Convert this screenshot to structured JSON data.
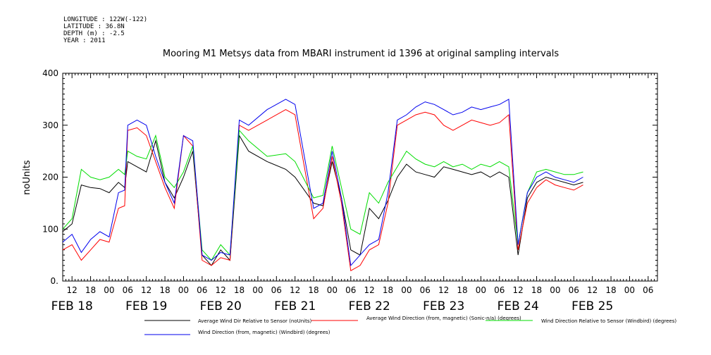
{
  "header": {
    "longitude": "LONGITUDE : 122W(-122)",
    "latitude": "LATITUDE : 36.8N",
    "depth": "DEPTH (m) : -2.5",
    "year": "YEAR : 2011"
  },
  "chart_data": {
    "type": "line",
    "title": "Mooring M1 Metsys data from MBARI instrument id 1396 at original sampling intervals",
    "ylabel": "noUnits",
    "ylim": [
      0,
      400
    ],
    "yticks": [
      "0.",
      "100",
      "200",
      "300",
      "400"
    ],
    "xlim": [
      "2011-02-17T09:00",
      "2011-02-25T09:00"
    ],
    "x_hour_ticks": [
      "12",
      "18",
      "00",
      "06",
      "12",
      "18",
      "00",
      "06",
      "12",
      "18",
      "00",
      "06",
      "12",
      "18",
      "00",
      "06",
      "12",
      "18",
      "00",
      "06",
      "12",
      "18",
      "00",
      "06",
      "12",
      "18",
      "00",
      "06",
      "12",
      "18",
      "00",
      "06"
    ],
    "x_day_labels": [
      "FEB 18",
      "FEB 19",
      "FEB 20",
      "FEB 21",
      "FEB 22",
      "FEB 23",
      "FEB 24",
      "FEB 25"
    ],
    "grid": false,
    "legend": "bottom",
    "series": [
      {
        "name": "Average Wind Dir Relative to Sensor (noUnits)",
        "color": "#000000",
        "points": [
          [
            "2011-02-17T09:00",
            95
          ],
          [
            "2011-02-17T12:00",
            110
          ],
          [
            "2011-02-17T15:00",
            185
          ],
          [
            "2011-02-17T18:00",
            180
          ],
          [
            "2011-02-17T21:00",
            178
          ],
          [
            "2011-02-18T00:00",
            170
          ],
          [
            "2011-02-18T03:00",
            190
          ],
          [
            "2011-02-18T05:00",
            180
          ],
          [
            "2011-02-18T06:00",
            230
          ],
          [
            "2011-02-18T09:00",
            220
          ],
          [
            "2011-02-18T12:00",
            210
          ],
          [
            "2011-02-18T15:00",
            270
          ],
          [
            "2011-02-18T18:00",
            190
          ],
          [
            "2011-02-18T21:00",
            160
          ],
          [
            "2011-02-19T00:00",
            200
          ],
          [
            "2011-02-19T03:00",
            250
          ],
          [
            "2011-02-19T06:00",
            50
          ],
          [
            "2011-02-19T09:00",
            30
          ],
          [
            "2011-02-19T12:00",
            60
          ],
          [
            "2011-02-19T15:00",
            40
          ],
          [
            "2011-02-19T18:00",
            280
          ],
          [
            "2011-02-19T21:00",
            250
          ],
          [
            "2011-02-20T03:00",
            230
          ],
          [
            "2011-02-20T09:00",
            215
          ],
          [
            "2011-02-20T12:00",
            200
          ],
          [
            "2011-02-20T18:00",
            150
          ],
          [
            "2011-02-20T21:00",
            145
          ],
          [
            "2011-02-21T00:00",
            230
          ],
          [
            "2011-02-21T03:00",
            160
          ],
          [
            "2011-02-21T06:00",
            60
          ],
          [
            "2011-02-21T09:00",
            50
          ],
          [
            "2011-02-21T12:00",
            140
          ],
          [
            "2011-02-21T15:00",
            120
          ],
          [
            "2011-02-21T18:00",
            155
          ],
          [
            "2011-02-21T21:00",
            200
          ],
          [
            "2011-02-22T00:00",
            225
          ],
          [
            "2011-02-22T03:00",
            210
          ],
          [
            "2011-02-22T06:00",
            205
          ],
          [
            "2011-02-22T09:00",
            200
          ],
          [
            "2011-02-22T12:00",
            220
          ],
          [
            "2011-02-22T15:00",
            215
          ],
          [
            "2011-02-22T18:00",
            210
          ],
          [
            "2011-02-22T21:00",
            205
          ],
          [
            "2011-02-23T00:00",
            210
          ],
          [
            "2011-02-23T03:00",
            200
          ],
          [
            "2011-02-23T06:00",
            210
          ],
          [
            "2011-02-23T09:00",
            200
          ],
          [
            "2011-02-23T12:00",
            50
          ],
          [
            "2011-02-23T15:00",
            160
          ],
          [
            "2011-02-23T18:00",
            190
          ],
          [
            "2011-02-23T21:00",
            200
          ],
          [
            "2011-02-24T00:00",
            195
          ],
          [
            "2011-02-24T03:00",
            190
          ],
          [
            "2011-02-24T06:00",
            185
          ],
          [
            "2011-02-24T09:00",
            190
          ]
        ]
      },
      {
        "name": "Average Wind Direction (from, magnetic) (Sonic-n/a) (degrees)",
        "color": "#ff0000",
        "points": [
          [
            "2011-02-17T09:00",
            60
          ],
          [
            "2011-02-17T12:00",
            70
          ],
          [
            "2011-02-17T15:00",
            40
          ],
          [
            "2011-02-17T18:00",
            60
          ],
          [
            "2011-02-17T21:00",
            80
          ],
          [
            "2011-02-18T00:00",
            75
          ],
          [
            "2011-02-18T03:00",
            140
          ],
          [
            "2011-02-18T05:00",
            145
          ],
          [
            "2011-02-18T06:00",
            290
          ],
          [
            "2011-02-18T09:00",
            295
          ],
          [
            "2011-02-18T12:00",
            280
          ],
          [
            "2011-02-18T15:00",
            230
          ],
          [
            "2011-02-18T18:00",
            180
          ],
          [
            "2011-02-18T21:00",
            140
          ],
          [
            "2011-02-19T00:00",
            280
          ],
          [
            "2011-02-19T03:00",
            260
          ],
          [
            "2011-02-19T06:00",
            40
          ],
          [
            "2011-02-19T09:00",
            30
          ],
          [
            "2011-02-19T12:00",
            45
          ],
          [
            "2011-02-19T15:00",
            40
          ],
          [
            "2011-02-19T18:00",
            300
          ],
          [
            "2011-02-19T21:00",
            290
          ],
          [
            "2011-02-20T03:00",
            310
          ],
          [
            "2011-02-20T09:00",
            330
          ],
          [
            "2011-02-20T12:00",
            320
          ],
          [
            "2011-02-20T18:00",
            120
          ],
          [
            "2011-02-20T21:00",
            140
          ],
          [
            "2011-02-21T00:00",
            240
          ],
          [
            "2011-02-21T03:00",
            150
          ],
          [
            "2011-02-21T06:00",
            20
          ],
          [
            "2011-02-21T09:00",
            30
          ],
          [
            "2011-02-21T12:00",
            60
          ],
          [
            "2011-02-21T15:00",
            70
          ],
          [
            "2011-02-21T18:00",
            150
          ],
          [
            "2011-02-21T21:00",
            300
          ],
          [
            "2011-02-22T00:00",
            310
          ],
          [
            "2011-02-22T03:00",
            320
          ],
          [
            "2011-02-22T06:00",
            325
          ],
          [
            "2011-02-22T09:00",
            320
          ],
          [
            "2011-02-22T12:00",
            300
          ],
          [
            "2011-02-22T15:00",
            290
          ],
          [
            "2011-02-22T18:00",
            300
          ],
          [
            "2011-02-22T21:00",
            310
          ],
          [
            "2011-02-23T00:00",
            305
          ],
          [
            "2011-02-23T03:00",
            300
          ],
          [
            "2011-02-23T06:00",
            305
          ],
          [
            "2011-02-23T09:00",
            320
          ],
          [
            "2011-02-23T12:00",
            60
          ],
          [
            "2011-02-23T15:00",
            150
          ],
          [
            "2011-02-23T18:00",
            180
          ],
          [
            "2011-02-23T21:00",
            195
          ],
          [
            "2011-02-24T00:00",
            185
          ],
          [
            "2011-02-24T03:00",
            180
          ],
          [
            "2011-02-24T06:00",
            175
          ],
          [
            "2011-02-24T09:00",
            185
          ]
        ]
      },
      {
        "name": "Wind Direction Relative to Sensor (Windbird) (degrees)",
        "color": "#00dd00",
        "points": [
          [
            "2011-02-17T09:00",
            100
          ],
          [
            "2011-02-17T12:00",
            120
          ],
          [
            "2011-02-17T15:00",
            215
          ],
          [
            "2011-02-17T18:00",
            200
          ],
          [
            "2011-02-17T21:00",
            195
          ],
          [
            "2011-02-18T00:00",
            200
          ],
          [
            "2011-02-18T03:00",
            215
          ],
          [
            "2011-02-18T05:00",
            205
          ],
          [
            "2011-02-18T06:00",
            250
          ],
          [
            "2011-02-18T09:00",
            240
          ],
          [
            "2011-02-18T12:00",
            235
          ],
          [
            "2011-02-18T15:00",
            280
          ],
          [
            "2011-02-18T18:00",
            200
          ],
          [
            "2011-02-18T21:00",
            180
          ],
          [
            "2011-02-19T00:00",
            210
          ],
          [
            "2011-02-19T03:00",
            260
          ],
          [
            "2011-02-19T06:00",
            60
          ],
          [
            "2011-02-19T09:00",
            40
          ],
          [
            "2011-02-19T12:00",
            70
          ],
          [
            "2011-02-19T15:00",
            50
          ],
          [
            "2011-02-19T18:00",
            290
          ],
          [
            "2011-02-19T21:00",
            270
          ],
          [
            "2011-02-20T03:00",
            240
          ],
          [
            "2011-02-20T09:00",
            245
          ],
          [
            "2011-02-20T12:00",
            230
          ],
          [
            "2011-02-20T18:00",
            160
          ],
          [
            "2011-02-20T21:00",
            165
          ],
          [
            "2011-02-21T00:00",
            260
          ],
          [
            "2011-02-21T03:00",
            180
          ],
          [
            "2011-02-21T06:00",
            100
          ],
          [
            "2011-02-21T09:00",
            90
          ],
          [
            "2011-02-21T12:00",
            170
          ],
          [
            "2011-02-21T15:00",
            150
          ],
          [
            "2011-02-21T18:00",
            190
          ],
          [
            "2011-02-21T21:00",
            220
          ],
          [
            "2011-02-22T00:00",
            250
          ],
          [
            "2011-02-22T03:00",
            235
          ],
          [
            "2011-02-22T06:00",
            225
          ],
          [
            "2011-02-22T09:00",
            220
          ],
          [
            "2011-02-22T12:00",
            230
          ],
          [
            "2011-02-22T15:00",
            220
          ],
          [
            "2011-02-22T18:00",
            225
          ],
          [
            "2011-02-22T21:00",
            215
          ],
          [
            "2011-02-23T00:00",
            225
          ],
          [
            "2011-02-23T03:00",
            220
          ],
          [
            "2011-02-23T06:00",
            230
          ],
          [
            "2011-02-23T09:00",
            220
          ],
          [
            "2011-02-23T12:00",
            70
          ],
          [
            "2011-02-23T15:00",
            170
          ],
          [
            "2011-02-23T18:00",
            210
          ],
          [
            "2011-02-23T21:00",
            215
          ],
          [
            "2011-02-24T00:00",
            210
          ],
          [
            "2011-02-24T03:00",
            205
          ],
          [
            "2011-02-24T06:00",
            205
          ],
          [
            "2011-02-24T09:00",
            210
          ]
        ]
      },
      {
        "name": "Wind Direction (from, magnetic) (Windbird) (degrees)",
        "color": "#0000ee",
        "points": [
          [
            "2011-02-17T09:00",
            75
          ],
          [
            "2011-02-17T12:00",
            90
          ],
          [
            "2011-02-17T15:00",
            55
          ],
          [
            "2011-02-17T18:00",
            80
          ],
          [
            "2011-02-17T21:00",
            95
          ],
          [
            "2011-02-18T00:00",
            85
          ],
          [
            "2011-02-18T03:00",
            170
          ],
          [
            "2011-02-18T05:00",
            175
          ],
          [
            "2011-02-18T06:00",
            300
          ],
          [
            "2011-02-18T09:00",
            310
          ],
          [
            "2011-02-18T12:00",
            300
          ],
          [
            "2011-02-18T15:00",
            240
          ],
          [
            "2011-02-18T18:00",
            190
          ],
          [
            "2011-02-18T21:00",
            150
          ],
          [
            "2011-02-19T00:00",
            280
          ],
          [
            "2011-02-19T03:00",
            270
          ],
          [
            "2011-02-19T06:00",
            50
          ],
          [
            "2011-02-19T09:00",
            40
          ],
          [
            "2011-02-19T12:00",
            55
          ],
          [
            "2011-02-19T15:00",
            50
          ],
          [
            "2011-02-19T18:00",
            310
          ],
          [
            "2011-02-19T21:00",
            300
          ],
          [
            "2011-02-20T03:00",
            330
          ],
          [
            "2011-02-20T09:00",
            350
          ],
          [
            "2011-02-20T12:00",
            340
          ],
          [
            "2011-02-20T18:00",
            140
          ],
          [
            "2011-02-20T21:00",
            150
          ],
          [
            "2011-02-21T00:00",
            250
          ],
          [
            "2011-02-21T03:00",
            160
          ],
          [
            "2011-02-21T06:00",
            30
          ],
          [
            "2011-02-21T09:00",
            50
          ],
          [
            "2011-02-21T12:00",
            70
          ],
          [
            "2011-02-21T15:00",
            80
          ],
          [
            "2011-02-21T18:00",
            170
          ],
          [
            "2011-02-21T21:00",
            310
          ],
          [
            "2011-02-22T00:00",
            320
          ],
          [
            "2011-02-22T03:00",
            335
          ],
          [
            "2011-02-22T06:00",
            345
          ],
          [
            "2011-02-22T09:00",
            340
          ],
          [
            "2011-02-22T12:00",
            330
          ],
          [
            "2011-02-22T15:00",
            320
          ],
          [
            "2011-02-22T18:00",
            325
          ],
          [
            "2011-02-22T21:00",
            335
          ],
          [
            "2011-02-23T00:00",
            330
          ],
          [
            "2011-02-23T03:00",
            335
          ],
          [
            "2011-02-23T06:00",
            340
          ],
          [
            "2011-02-23T09:00",
            350
          ],
          [
            "2011-02-23T12:00",
            70
          ],
          [
            "2011-02-23T15:00",
            170
          ],
          [
            "2011-02-23T18:00",
            200
          ],
          [
            "2011-02-23T21:00",
            210
          ],
          [
            "2011-02-24T00:00",
            200
          ],
          [
            "2011-02-24T03:00",
            195
          ],
          [
            "2011-02-24T06:00",
            190
          ],
          [
            "2011-02-24T09:00",
            200
          ]
        ]
      }
    ]
  }
}
